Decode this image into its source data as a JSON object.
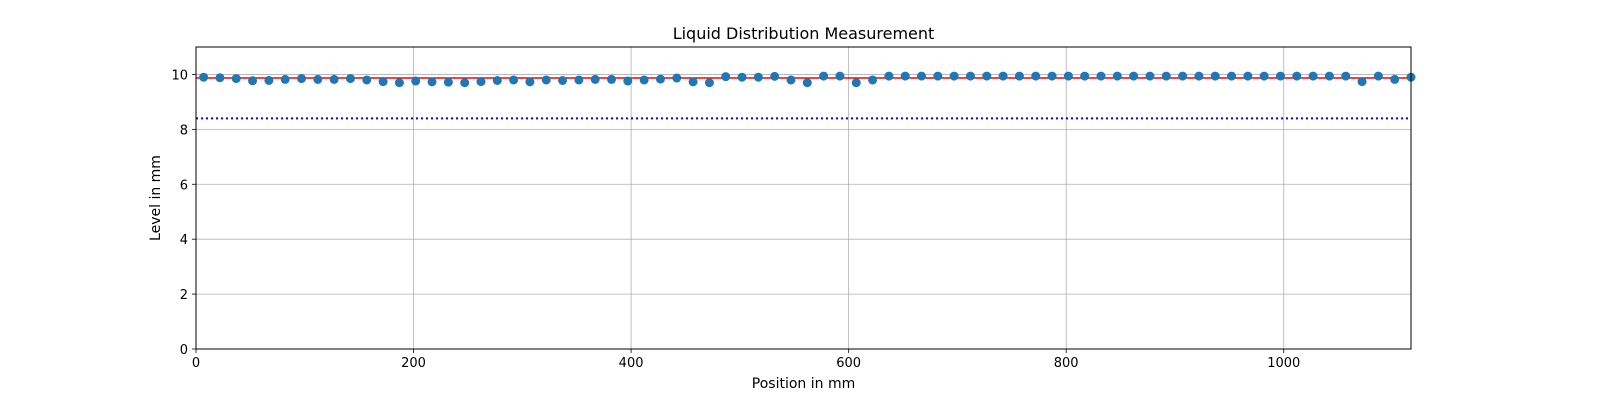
{
  "chart_data": {
    "type": "scatter",
    "title": "Liquid Distribution Measurement",
    "xlabel": "Position in mm",
    "ylabel": "Level in mm",
    "xlim": [
      0,
      1117
    ],
    "ylim": [
      0,
      11
    ],
    "xticks": [
      0,
      200,
      400,
      600,
      800,
      1000
    ],
    "yticks": [
      0,
      2,
      4,
      6,
      8,
      10
    ],
    "grid": true,
    "point_color": "#1f77b4",
    "series": [
      {
        "x": [
          7,
          22,
          37,
          52,
          67,
          82,
          97,
          112,
          127,
          142,
          157,
          172,
          187,
          202,
          217,
          232,
          247,
          262,
          277,
          292,
          307,
          322,
          337,
          352,
          367,
          382,
          397,
          412,
          427,
          442,
          457,
          472,
          487,
          502,
          517,
          532,
          547,
          562,
          577,
          592,
          607,
          622,
          637,
          652,
          667,
          682,
          697,
          712,
          727,
          742,
          757,
          772,
          787,
          802,
          817,
          832,
          847,
          862,
          877,
          892,
          907,
          922,
          937,
          952,
          967,
          982,
          997,
          1012,
          1027,
          1042,
          1057,
          1072,
          1087,
          1102,
          1117
        ],
        "y": [
          9.9,
          9.88,
          9.85,
          9.77,
          9.78,
          9.82,
          9.85,
          9.82,
          9.82,
          9.85,
          9.8,
          9.74,
          9.7,
          9.76,
          9.73,
          9.72,
          9.7,
          9.74,
          9.78,
          9.8,
          9.73,
          9.8,
          9.78,
          9.8,
          9.82,
          9.82,
          9.76,
          9.8,
          9.83,
          9.87,
          9.73,
          9.7,
          9.92,
          9.9,
          9.9,
          9.93,
          9.8,
          9.7,
          9.94,
          9.94,
          9.7,
          9.8,
          9.94,
          9.94,
          9.94,
          9.94,
          9.94,
          9.94,
          9.94,
          9.94,
          9.94,
          9.94,
          9.94,
          9.94,
          9.94,
          9.94,
          9.94,
          9.94,
          9.94,
          9.94,
          9.94,
          9.94,
          9.94,
          9.94,
          9.94,
          9.94,
          9.94,
          9.94,
          9.94,
          9.94,
          9.94,
          9.74,
          9.94,
          9.82,
          9.9
        ]
      }
    ],
    "reference_lines": [
      {
        "y": 9.87,
        "color": "#ff0000",
        "style": "solid"
      },
      {
        "y": 8.4,
        "color": "#0000ff",
        "style": "dotted"
      }
    ]
  }
}
